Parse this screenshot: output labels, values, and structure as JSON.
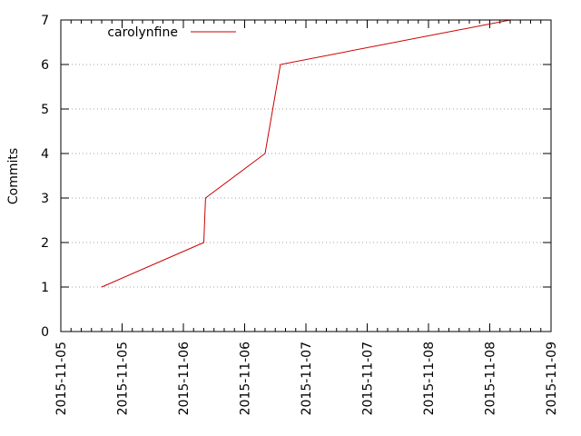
{
  "chart_data": {
    "type": "line",
    "title": "",
    "xlabel": "",
    "ylabel": "Commits",
    "x_tick_labels": [
      "2015-11-05",
      "2015-11-05",
      "2015-11-06",
      "2015-11-06",
      "2015-11-07",
      "2015-11-07",
      "2015-11-08",
      "2015-11-08",
      "2015-11-09"
    ],
    "y_ticks": [
      0,
      1,
      2,
      3,
      4,
      5,
      6,
      7
    ],
    "ylim": [
      0,
      7
    ],
    "xlim": [
      "2015-11-05 00:00",
      "2015-11-09 00:00"
    ],
    "grid": {
      "y": true,
      "x": false
    },
    "legend_position": "top-left",
    "series": [
      {
        "name": "carolynfine",
        "color": "#cc0000",
        "points": [
          {
            "x": "2015-11-05 08:00",
            "y": 1
          },
          {
            "x": "2015-11-06 04:00",
            "y": 2
          },
          {
            "x": "2015-11-06 04:20",
            "y": 3
          },
          {
            "x": "2015-11-06 16:00",
            "y": 4
          },
          {
            "x": "2015-11-06 19:00",
            "y": 6
          },
          {
            "x": "2015-11-08 16:00",
            "y": 7
          }
        ]
      }
    ]
  }
}
